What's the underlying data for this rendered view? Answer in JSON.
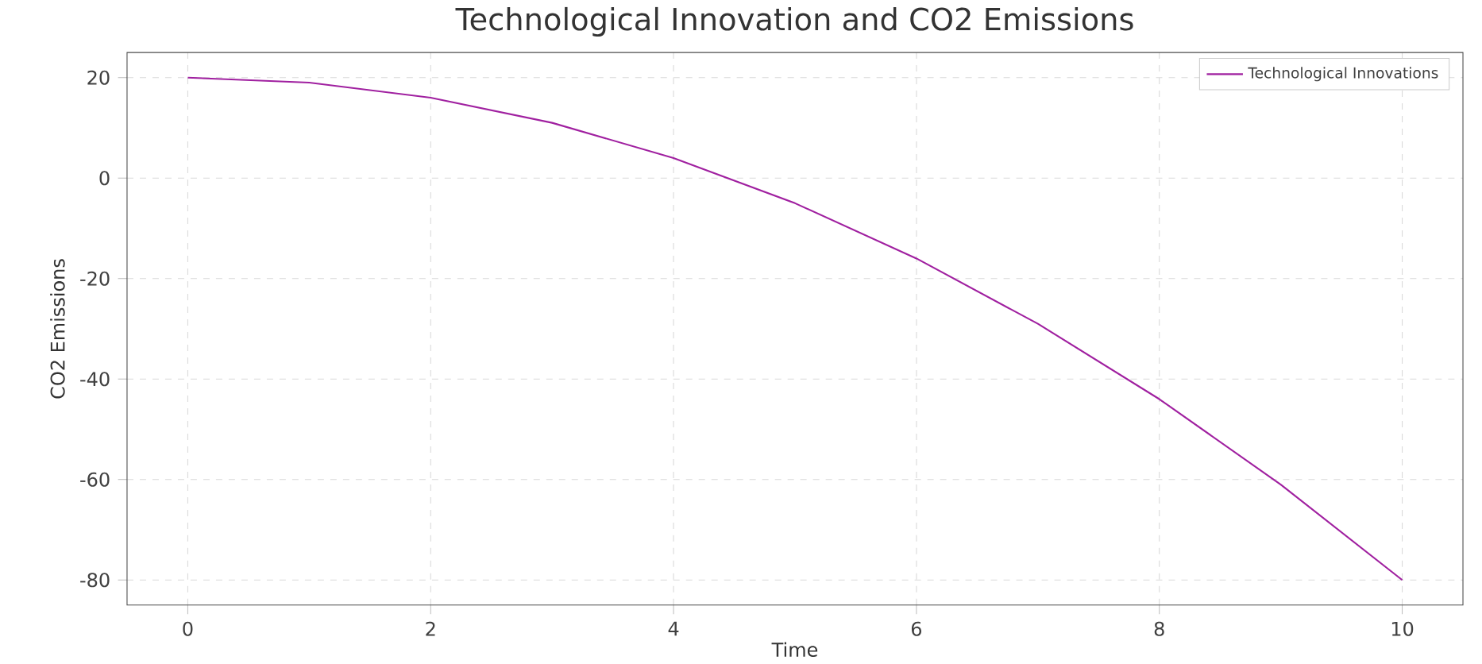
{
  "chart_data": {
    "type": "line",
    "title": "Technological Innovation and CO2 Emissions",
    "xlabel": "Time",
    "ylabel": "CO2 Emissions",
    "series": [
      {
        "name": "Technological Innovations",
        "color": "#a020a0",
        "x": [
          0,
          1,
          2,
          3,
          4,
          5,
          6,
          7,
          8,
          9,
          10
        ],
        "values": [
          20,
          19,
          16,
          11,
          4,
          -5,
          -16,
          -29,
          -44,
          -61,
          -80
        ]
      }
    ],
    "xlim": [
      -0.5,
      10.5
    ],
    "ylim": [
      -85,
      25
    ],
    "xticks": [
      0,
      2,
      4,
      6,
      8,
      10
    ],
    "yticks": [
      -80,
      -60,
      -40,
      -20,
      0,
      20
    ],
    "grid": true,
    "legend": "top right",
    "line_style": "solid",
    "marker": "none"
  }
}
